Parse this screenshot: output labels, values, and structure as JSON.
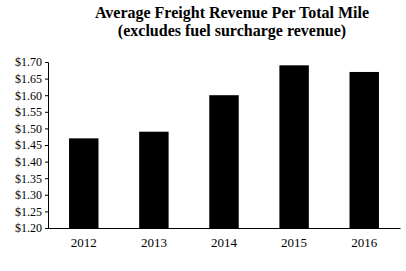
{
  "chart_data": {
    "type": "bar",
    "title": "Average Freight Revenue Per Total Mile",
    "subtitle": "(excludes fuel surcharge revenue)",
    "categories": [
      "2012",
      "2013",
      "2014",
      "2015",
      "2016"
    ],
    "values": [
      1.47,
      1.49,
      1.6,
      1.69,
      1.67
    ],
    "color": "#000000",
    "ylim": [
      1.2,
      1.7
    ],
    "yticks": [
      {
        "value": 1.2,
        "label": "$1.20"
      },
      {
        "value": 1.25,
        "label": "$1.25"
      },
      {
        "value": 1.3,
        "label": "$1.30"
      },
      {
        "value": 1.35,
        "label": "$1.35"
      },
      {
        "value": 1.4,
        "label": "$1.40"
      },
      {
        "value": 1.45,
        "label": "$1.45"
      },
      {
        "value": 1.5,
        "label": "$1.50"
      },
      {
        "value": 1.55,
        "label": "$1.55"
      },
      {
        "value": 1.6,
        "label": "$1.60"
      },
      {
        "value": 1.65,
        "label": "$1.65"
      },
      {
        "value": 1.7,
        "label": "$1.70"
      }
    ],
    "grid": false
  }
}
